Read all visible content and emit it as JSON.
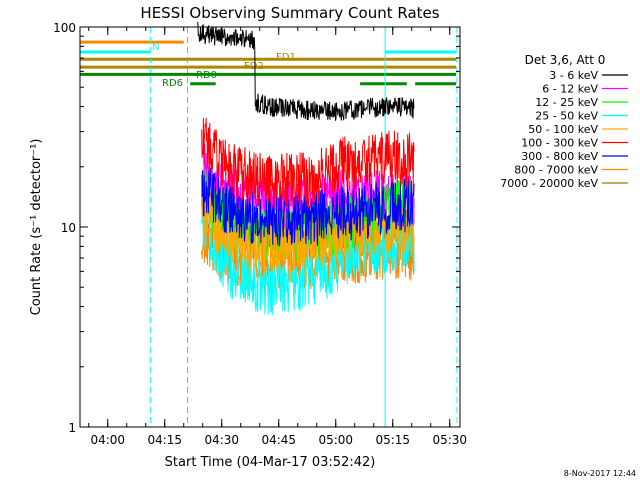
{
  "chart_data": {
    "type": "line",
    "title": "HESSI Observing Summary Count Rates",
    "xlabel": "Start Time (04-Mar-17 03:52:42)",
    "ylabel": "Count Rate (s⁻¹ detector⁻¹)",
    "yscale": "log",
    "xlim_minutes": [
      0,
      100
    ],
    "ylim": [
      1,
      100
    ],
    "x_ticks": [
      {
        "label": "04:00",
        "t": 7.3
      },
      {
        "label": "04:15",
        "t": 22.3
      },
      {
        "label": "04:30",
        "t": 37.3
      },
      {
        "label": "04:45",
        "t": 52.3
      },
      {
        "label": "05:00",
        "t": 67.3
      },
      {
        "label": "05:15",
        "t": 82.3
      },
      {
        "label": "05:30",
        "t": 97.3
      }
    ],
    "y_ticks": [
      {
        "label": "1",
        "v": 1
      },
      {
        "label": "10",
        "v": 10
      },
      {
        "label": "100",
        "v": 100
      }
    ],
    "legend": {
      "header": "Det 3,6, Att 0",
      "position": "right"
    },
    "series": [
      {
        "name": "3 - 6 keV",
        "color": "#000000",
        "t": [
          31,
          33,
          35,
          40,
          46,
          46.2,
          50,
          56,
          62,
          68,
          74,
          80,
          86,
          88
        ],
        "values": [
          95,
          92,
          90,
          88,
          85,
          42,
          40,
          39,
          38,
          38,
          39,
          40,
          40,
          39
        ]
      },
      {
        "name": "6 - 12 keV",
        "color": "#ff00ff",
        "t": [
          32,
          36,
          40,
          44,
          48,
          52,
          56,
          62,
          68,
          74,
          80,
          86,
          88
        ],
        "values": [
          20,
          17,
          15,
          14,
          13.5,
          13,
          13,
          13.5,
          14,
          14,
          14,
          14,
          13
        ]
      },
      {
        "name": "12 - 25 keV",
        "color": "#00ff00",
        "t": [
          32,
          36,
          40,
          44,
          48,
          52,
          56,
          62,
          68,
          74,
          80,
          86,
          88
        ],
        "values": [
          15,
          12,
          10.5,
          9.5,
          9,
          9,
          9,
          9.5,
          10,
          11,
          12,
          13,
          12
        ]
      },
      {
        "name": "25 - 50 keV",
        "color": "#00ffff",
        "t": [
          32,
          36,
          40,
          44,
          48,
          52,
          56,
          62,
          68,
          74,
          80,
          86,
          88
        ],
        "values": [
          11,
          7.5,
          6,
          5.5,
          5,
          5,
          5,
          5.5,
          6.5,
          7.5,
          8,
          8.5,
          8
        ]
      },
      {
        "name": "50 - 100 keV",
        "color": "#ffaa00",
        "t": [
          32,
          36,
          40,
          44,
          48,
          52,
          56,
          62,
          68,
          74,
          80,
          86,
          88
        ],
        "values": [
          13,
          10,
          9,
          8.5,
          8,
          8,
          8,
          8.5,
          9,
          9.5,
          10,
          10,
          9.5
        ]
      },
      {
        "name": "100 - 300 keV",
        "color": "#ff0000",
        "t": [
          32,
          36,
          40,
          44,
          48,
          52,
          56,
          62,
          68,
          74,
          80,
          86,
          88
        ],
        "values": [
          28,
          22,
          19,
          18,
          17,
          17,
          17,
          17.5,
          20,
          22,
          22,
          22,
          21
        ]
      },
      {
        "name": "300 - 800 keV",
        "color": "#0000ff",
        "t": [
          32,
          36,
          40,
          44,
          48,
          52,
          56,
          62,
          68,
          74,
          80,
          86,
          88
        ],
        "values": [
          16,
          13,
          12,
          11.5,
          11,
          11,
          10.5,
          11,
          11.5,
          12,
          12.5,
          13,
          12.5
        ]
      },
      {
        "name": "800 - 7000 keV",
        "color": "#ff8800",
        "t": [
          32,
          36,
          40,
          44,
          48,
          52,
          56,
          62,
          68,
          74,
          80,
          86,
          88
        ],
        "values": [
          9,
          7.5,
          7,
          6.5,
          6.5,
          6.5,
          6.5,
          6.7,
          7,
          7.2,
          7.5,
          7.5,
          7.2
        ]
      },
      {
        "name": "7000 - 20000 keV",
        "color": "#aa7700",
        "t": [
          32,
          36,
          40,
          44,
          48,
          52,
          56,
          62,
          68,
          74,
          80,
          86,
          88
        ],
        "values": [
          12,
          10,
          9,
          9,
          9,
          9,
          9,
          9,
          9,
          9,
          9,
          9,
          9
        ]
      }
    ],
    "flag_bars": [
      {
        "color": "#ff8800",
        "segments": [
          [
            0,
            27.3
          ]
        ],
        "values": [
          84
        ]
      },
      {
        "color": "#00ffff",
        "label": "N",
        "segments": [
          [
            0,
            18.5
          ],
          [
            80.3,
            99
          ]
        ],
        "values": [
          75,
          75
        ]
      },
      {
        "color": "#aa8800",
        "label": "FD1",
        "segments": [
          [
            0,
            99
          ]
        ],
        "values": [
          69
        ]
      },
      {
        "color": "#aa8800",
        "label": "FD2",
        "segments": [
          [
            0,
            99
          ]
        ],
        "values": [
          63
        ]
      },
      {
        "color": "#008800",
        "label": "RD0",
        "segments": [
          [
            0,
            99
          ]
        ],
        "values": [
          58
        ]
      },
      {
        "color": "#008800",
        "label": "RD6",
        "segments": [
          [
            29,
            35.7
          ],
          [
            73.7,
            86
          ],
          [
            88.2,
            99
          ]
        ],
        "values": [
          52,
          52,
          52
        ]
      }
    ],
    "vlines": [
      {
        "t": 18.5,
        "color": "#00ffff",
        "dashed": true
      },
      {
        "t": 28.3,
        "color": "#ff8800",
        "dashed": true
      },
      {
        "t": 80.3,
        "color": "#00ffff",
        "dashed": false
      },
      {
        "t": 99.2,
        "color": "#00ffff",
        "dashed": true
      }
    ]
  },
  "footer": {
    "timestamp": "8-Nov-2017 12:44"
  }
}
